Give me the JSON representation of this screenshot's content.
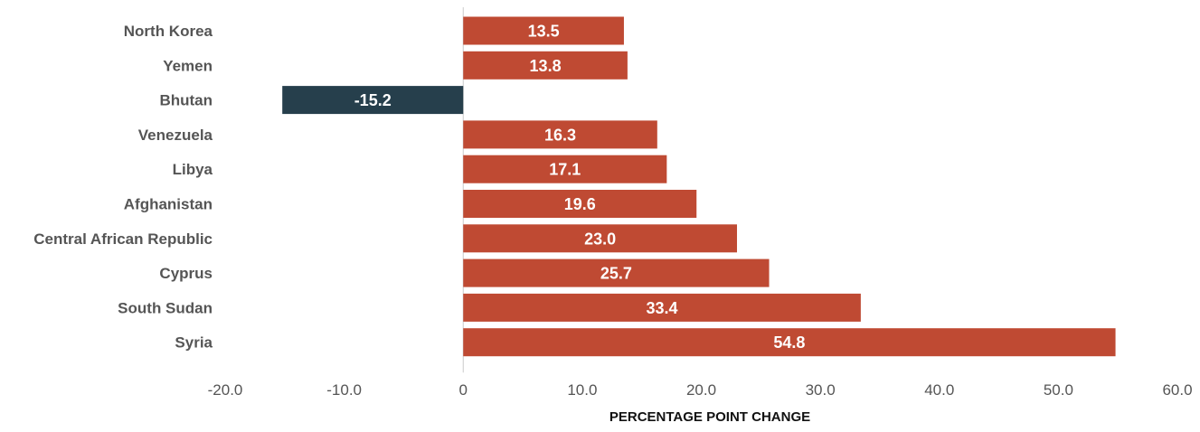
{
  "chart_data": {
    "type": "bar",
    "orientation": "horizontal",
    "title": "",
    "xlabel": "PERCENTAGE POINT CHANGE",
    "ylabel": "",
    "categories": [
      "North Korea",
      "Yemen",
      "Bhutan",
      "Venezuela",
      "Libya",
      "Afghanistan",
      "Central African Republic",
      "Cyprus",
      "South Sudan",
      "Syria"
    ],
    "values": [
      13.5,
      13.8,
      -15.2,
      16.3,
      17.1,
      19.6,
      23.0,
      25.7,
      33.4,
      54.8
    ],
    "value_labels": [
      "13.5",
      "13.8",
      "-15.2",
      "16.3",
      "17.1",
      "19.6",
      "23.0",
      "25.7",
      "33.4",
      "54.8"
    ],
    "xlim": [
      -20,
      60
    ],
    "xticks": [
      -20,
      -10,
      0,
      10,
      20,
      30,
      40,
      50,
      60
    ],
    "xtick_labels": [
      "-20.0",
      "-10.0",
      "0",
      "10.0",
      "20.0",
      "30.0",
      "40.0",
      "50.0",
      "60.0"
    ],
    "grid": false,
    "legend": "none",
    "colors": {
      "positive": "#bf4a33",
      "negative": "#263f4c",
      "zero_line": "#cccccc"
    }
  }
}
